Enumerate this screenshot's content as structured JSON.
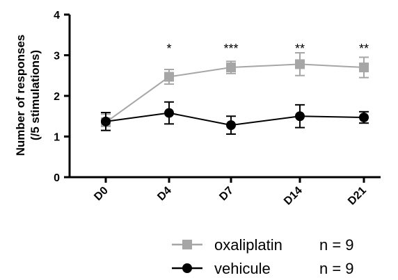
{
  "chart_data": {
    "type": "line",
    "categories": [
      "D0",
      "D4",
      "D7",
      "D14",
      "D21"
    ],
    "ylabel_line1": "Number of responses",
    "ylabel_line2": "(/5 stimulations)",
    "ylim": [
      0,
      4
    ],
    "yticks": [
      0,
      1,
      2,
      3,
      4
    ],
    "grid": false,
    "legend_position": "bottom-right",
    "series": [
      {
        "name": "oxaliplatin",
        "n_label": "n = 9",
        "color": "#a6a6a6",
        "marker": "square",
        "values": [
          1.35,
          2.47,
          2.7,
          2.78,
          2.7
        ],
        "errors": [
          0.2,
          0.18,
          0.15,
          0.28,
          0.25
        ]
      },
      {
        "name": "vehicule",
        "n_label": "n = 9",
        "color": "#000000",
        "marker": "circle",
        "values": [
          1.37,
          1.58,
          1.28,
          1.5,
          1.47
        ],
        "errors": [
          0.22,
          0.27,
          0.22,
          0.28,
          0.14
        ]
      }
    ],
    "annotations": [
      "",
      "*",
      "***",
      "**",
      "**"
    ]
  }
}
